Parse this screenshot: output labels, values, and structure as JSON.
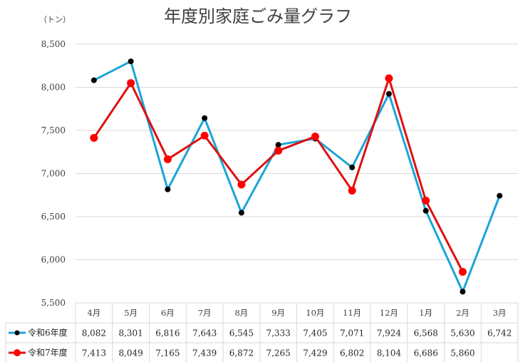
{
  "chart_data": {
    "type": "line",
    "title": "年度別家庭ごみ量グラフ",
    "unit_label": "（トン）",
    "ylim": [
      5500,
      8500
    ],
    "yticks": [
      "5,500",
      "6,000",
      "6,500",
      "7,000",
      "7,500",
      "8,000",
      "8,500"
    ],
    "grid": true,
    "legend": "table-left",
    "categories": [
      "4月",
      "5月",
      "6月",
      "7月",
      "8月",
      "9月",
      "10月",
      "11月",
      "12月",
      "1月",
      "2月",
      "3月"
    ],
    "series": [
      {
        "name": "令和6年度",
        "color": "#1AA5D8",
        "marker_color": "#000000",
        "values": [
          8082,
          8301,
          6816,
          7643,
          6545,
          7333,
          7405,
          7071,
          7924,
          6568,
          5630,
          6742
        ],
        "labels": [
          "8,082",
          "8,301",
          "6,816",
          "7,643",
          "6,545",
          "7,333",
          "7,405",
          "7,071",
          "7,924",
          "6,568",
          "5,630",
          "6,742"
        ]
      },
      {
        "name": "令和7年度",
        "color": "#E01010",
        "marker_color": "#FF0000",
        "values": [
          7413,
          8049,
          7165,
          7439,
          6872,
          7265,
          7429,
          6802,
          8104,
          6686,
          5860,
          null
        ],
        "labels": [
          "7,413",
          "8,049",
          "7,165",
          "7,439",
          "6,872",
          "7,265",
          "7,429",
          "6,802",
          "8,104",
          "6,686",
          "5,860",
          ""
        ]
      }
    ]
  }
}
